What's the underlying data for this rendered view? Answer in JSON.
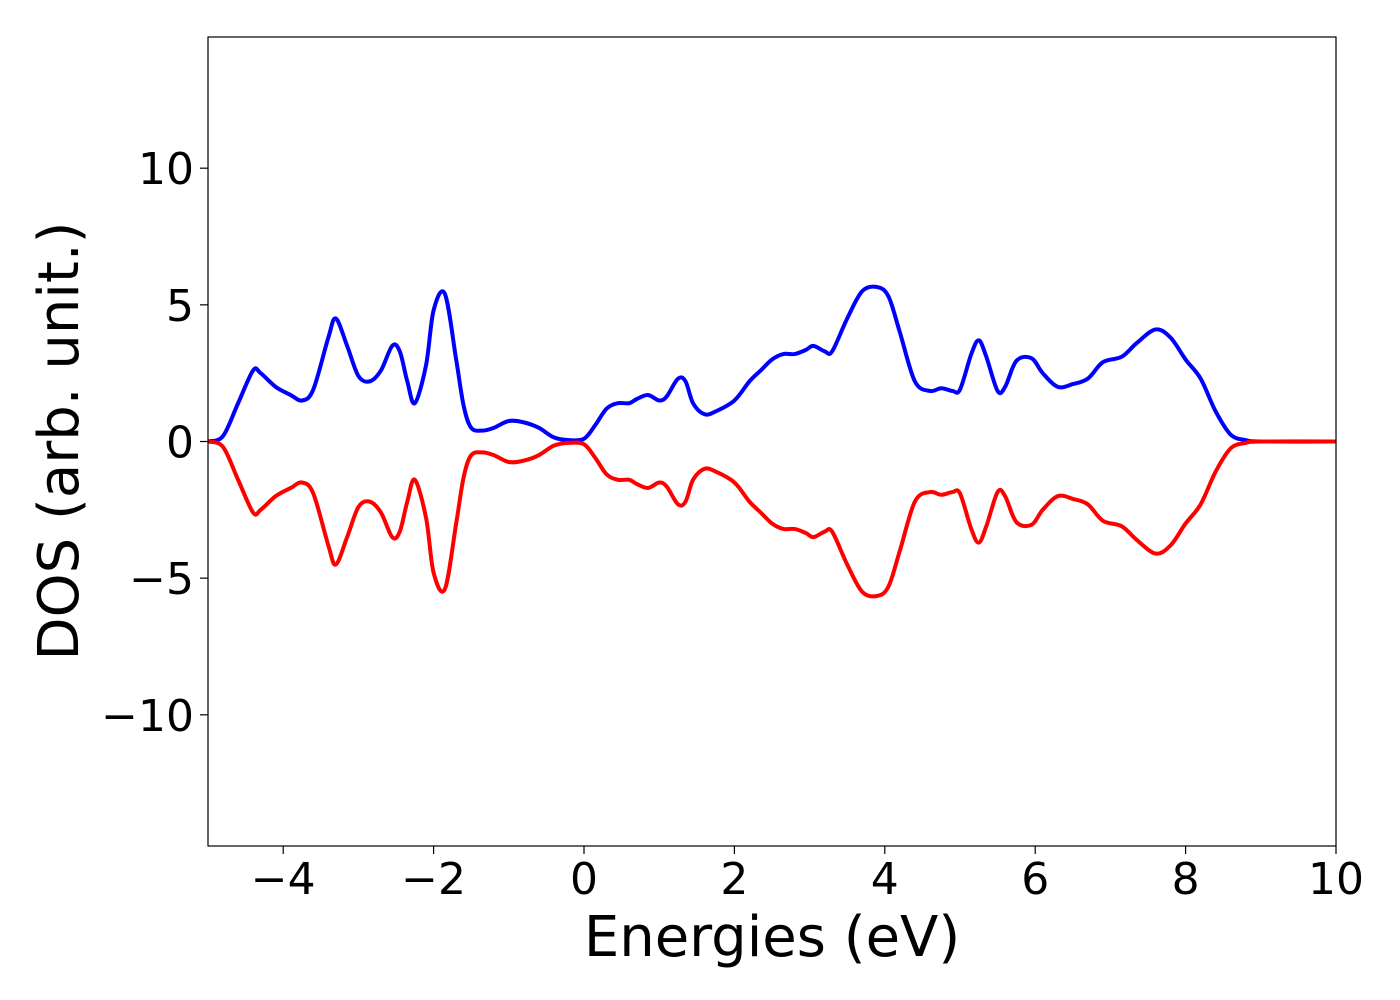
{
  "chart_data": {
    "type": "line",
    "xlabel": "Energies (eV)",
    "ylabel": "DOS (arb. unit.)",
    "xlim": [
      -5,
      10
    ],
    "ylim": [
      -14.8,
      14.8
    ],
    "xticks": [
      -4,
      -2,
      0,
      2,
      4,
      6,
      8,
      10
    ],
    "xtick_labels": [
      "−4",
      "−2",
      "0",
      "2",
      "4",
      "6",
      "8",
      "10"
    ],
    "yticks": [
      10,
      5,
      0,
      -5,
      -10
    ],
    "ytick_labels": [
      "10",
      "5",
      "0",
      "−5",
      "−10"
    ],
    "grid": false,
    "legend": "none",
    "series": [
      {
        "color": "#0000ff",
        "x": [
          -5.0,
          -4.8,
          -4.6,
          -4.4,
          -4.3,
          -4.1,
          -3.9,
          -3.75,
          -3.6,
          -3.4,
          -3.3,
          -3.15,
          -3.0,
          -2.85,
          -2.7,
          -2.55,
          -2.45,
          -2.35,
          -2.25,
          -2.1,
          -2.0,
          -1.85,
          -1.7,
          -1.6,
          -1.5,
          -1.35,
          -1.2,
          -1.0,
          -0.8,
          -0.6,
          -0.4,
          -0.2,
          0.0,
          0.15,
          0.3,
          0.45,
          0.6,
          0.7,
          0.85,
          1.0,
          1.1,
          1.25,
          1.35,
          1.45,
          1.6,
          1.75,
          2.0,
          2.2,
          2.35,
          2.5,
          2.65,
          2.8,
          2.95,
          3.05,
          3.2,
          3.3,
          3.5,
          3.7,
          3.9,
          4.05,
          4.2,
          4.4,
          4.6,
          4.75,
          4.9,
          5.0,
          5.15,
          5.25,
          5.35,
          5.5,
          5.6,
          5.75,
          5.95,
          6.1,
          6.3,
          6.5,
          6.7,
          6.9,
          7.15,
          7.35,
          7.6,
          7.8,
          8.0,
          8.2,
          8.4,
          8.6,
          8.8,
          9.0,
          10.0
        ],
        "y": [
          0.0,
          0.2,
          1.4,
          2.6,
          2.5,
          2.0,
          1.7,
          1.5,
          1.9,
          3.8,
          4.5,
          3.5,
          2.4,
          2.2,
          2.6,
          3.5,
          3.3,
          2.2,
          1.4,
          2.8,
          4.8,
          5.4,
          3.0,
          1.3,
          0.5,
          0.4,
          0.5,
          0.75,
          0.7,
          0.5,
          0.15,
          0.05,
          0.1,
          0.6,
          1.2,
          1.4,
          1.4,
          1.55,
          1.7,
          1.5,
          1.65,
          2.3,
          2.2,
          1.4,
          1.0,
          1.1,
          1.5,
          2.2,
          2.6,
          3.0,
          3.2,
          3.2,
          3.35,
          3.5,
          3.3,
          3.3,
          4.5,
          5.5,
          5.65,
          5.3,
          4.0,
          2.2,
          1.85,
          1.95,
          1.85,
          1.9,
          3.2,
          3.7,
          3.1,
          1.85,
          2.0,
          2.95,
          3.05,
          2.5,
          2.0,
          2.1,
          2.3,
          2.9,
          3.1,
          3.6,
          4.1,
          3.8,
          3.0,
          2.3,
          1.1,
          0.25,
          0.05,
          0.0,
          0.0
        ]
      },
      {
        "color": "#ff0000",
        "x": [
          -5.0,
          -4.8,
          -4.6,
          -4.4,
          -4.3,
          -4.1,
          -3.9,
          -3.75,
          -3.6,
          -3.4,
          -3.3,
          -3.15,
          -3.0,
          -2.85,
          -2.7,
          -2.55,
          -2.45,
          -2.35,
          -2.25,
          -2.1,
          -2.0,
          -1.85,
          -1.7,
          -1.6,
          -1.5,
          -1.35,
          -1.2,
          -1.0,
          -0.8,
          -0.6,
          -0.4,
          -0.2,
          0.0,
          0.15,
          0.3,
          0.45,
          0.6,
          0.7,
          0.85,
          1.0,
          1.1,
          1.25,
          1.35,
          1.45,
          1.6,
          1.75,
          2.0,
          2.2,
          2.35,
          2.5,
          2.65,
          2.8,
          2.95,
          3.05,
          3.2,
          3.3,
          3.5,
          3.7,
          3.9,
          4.05,
          4.2,
          4.4,
          4.6,
          4.75,
          4.9,
          5.0,
          5.15,
          5.25,
          5.35,
          5.5,
          5.6,
          5.75,
          5.95,
          6.1,
          6.3,
          6.5,
          6.7,
          6.9,
          7.15,
          7.35,
          7.6,
          7.8,
          8.0,
          8.2,
          8.4,
          8.6,
          8.8,
          9.0,
          10.0
        ],
        "y": [
          0.0,
          -0.2,
          -1.4,
          -2.6,
          -2.5,
          -2.0,
          -1.7,
          -1.5,
          -1.9,
          -3.8,
          -4.5,
          -3.5,
          -2.4,
          -2.2,
          -2.6,
          -3.5,
          -3.3,
          -2.2,
          -1.4,
          -2.8,
          -4.8,
          -5.4,
          -3.0,
          -1.3,
          -0.5,
          -0.4,
          -0.5,
          -0.75,
          -0.7,
          -0.5,
          -0.15,
          -0.05,
          -0.1,
          -0.6,
          -1.2,
          -1.4,
          -1.4,
          -1.55,
          -1.7,
          -1.5,
          -1.65,
          -2.3,
          -2.2,
          -1.4,
          -1.0,
          -1.1,
          -1.5,
          -2.2,
          -2.6,
          -3.0,
          -3.2,
          -3.2,
          -3.35,
          -3.5,
          -3.3,
          -3.3,
          -4.5,
          -5.5,
          -5.65,
          -5.3,
          -4.0,
          -2.2,
          -1.85,
          -1.95,
          -1.85,
          -1.9,
          -3.2,
          -3.7,
          -3.1,
          -1.85,
          -2.0,
          -2.95,
          -3.05,
          -2.5,
          -2.0,
          -2.1,
          -2.3,
          -2.9,
          -3.1,
          -3.6,
          -4.1,
          -3.8,
          -3.0,
          -2.3,
          -1.1,
          -0.25,
          -0.05,
          0.0,
          0.0
        ]
      }
    ]
  }
}
